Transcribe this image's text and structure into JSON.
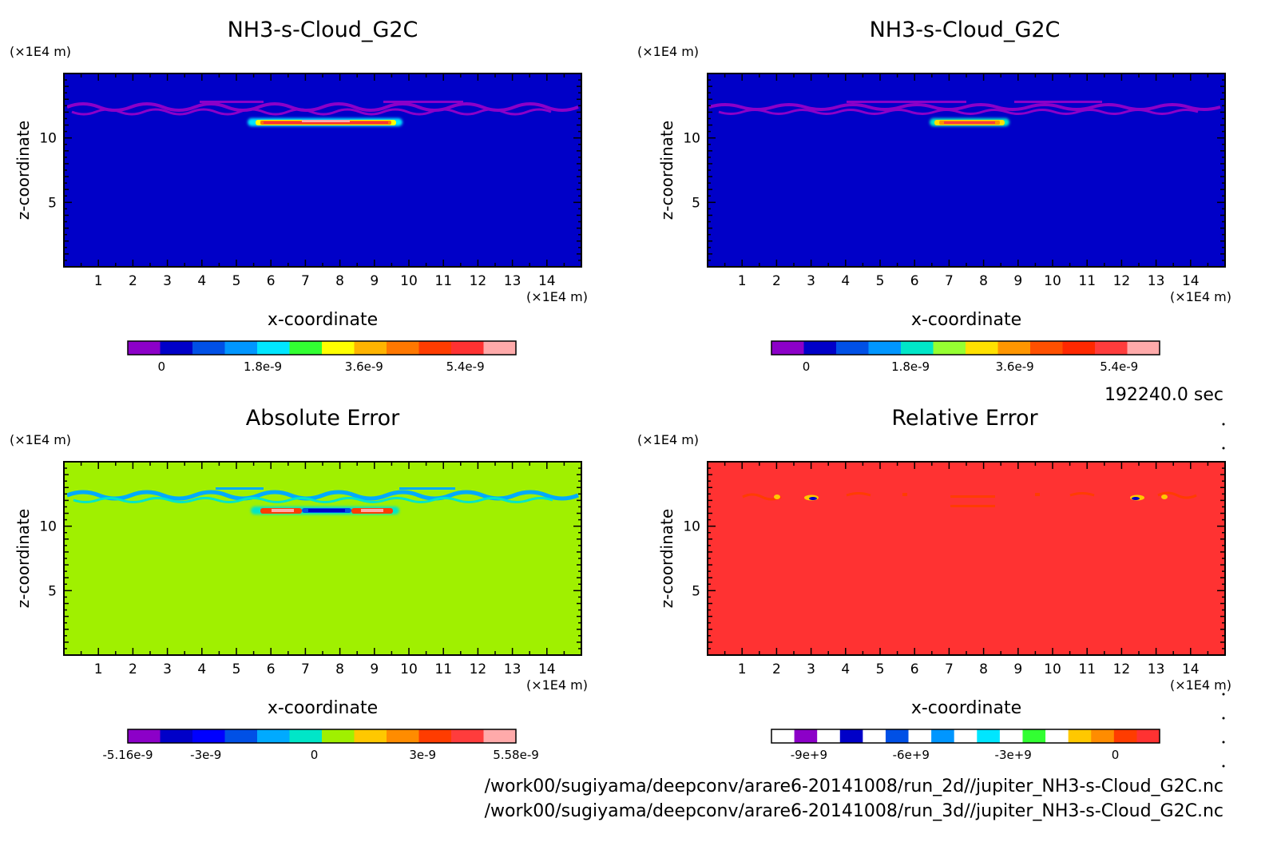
{
  "time_label": "192240.0 sec",
  "file_paths": [
    "/work00/sugiyama/deepconv/arare6-20141008/run_2d//jupiter_NH3-s-Cloud_G2C.nc",
    "/work00/sugiyama/deepconv/arare6-20141008/run_3d//jupiter_NH3-s-Cloud_G2C.nc"
  ],
  "chart_data": [
    {
      "type": "heatmap",
      "title": "NH3-s-Cloud_G2C",
      "xlabel": "x-coordinate",
      "ylabel": "z-coordinate",
      "x_unit": "(×1E4 m)",
      "y_unit": "(×1E4 m)",
      "xlim": [
        0,
        15
      ],
      "ylim": [
        0,
        15
      ],
      "xticks": [
        1,
        2,
        3,
        4,
        5,
        6,
        7,
        8,
        9,
        10,
        11,
        12,
        13,
        14
      ],
      "yticks": [
        5,
        10
      ],
      "background_color": "#0000c8",
      "colorbar": {
        "colors": [
          "#8c00c8",
          "#0000c8",
          "#0050e6",
          "#0096ff",
          "#00e6ff",
          "#32ff32",
          "#ffff00",
          "#ffb400",
          "#ff7800",
          "#ff3c00",
          "#ff3232",
          "#ffaaaa"
        ],
        "tick_labels": [
          "0",
          "1.8e-9",
          "3.6e-9",
          "5.4e-9"
        ],
        "tick_values": [
          0,
          1.8e-09,
          3.6e-09,
          5.4e-09
        ],
        "vmin": -6e-10,
        "vmax": 6.3e-09
      }
    },
    {
      "type": "heatmap",
      "title": "NH3-s-Cloud_G2C",
      "xlabel": "x-coordinate",
      "ylabel": "z-coordinate",
      "x_unit": "(×1E4 m)",
      "y_unit": "(×1E4 m)",
      "xlim": [
        0,
        15
      ],
      "ylim": [
        0,
        15
      ],
      "xticks": [
        1,
        2,
        3,
        4,
        5,
        6,
        7,
        8,
        9,
        10,
        11,
        12,
        13,
        14
      ],
      "yticks": [
        5,
        10
      ],
      "background_color": "#0000c8",
      "colorbar": {
        "colors": [
          "#8c00c8",
          "#0000c8",
          "#0050e6",
          "#0096ff",
          "#00e6c8",
          "#96ff32",
          "#ffe100",
          "#ff9600",
          "#ff5000",
          "#ff2800",
          "#ff3c3c",
          "#ffaaaa"
        ],
        "tick_labels": [
          "0",
          "1.8e-9",
          "3.6e-9",
          "5.4e-9"
        ],
        "tick_values": [
          0,
          1.8e-09,
          3.6e-09,
          5.4e-09
        ],
        "vmin": -6e-10,
        "vmax": 6.1e-09
      }
    },
    {
      "type": "heatmap",
      "title": "Absolute Error",
      "xlabel": "x-coordinate",
      "ylabel": "z-coordinate",
      "x_unit": "(×1E4 m)",
      "y_unit": "(×1E4 m)",
      "xlim": [
        0,
        15
      ],
      "ylim": [
        0,
        15
      ],
      "xticks": [
        1,
        2,
        3,
        4,
        5,
        6,
        7,
        8,
        9,
        10,
        11,
        12,
        13,
        14
      ],
      "yticks": [
        5,
        10
      ],
      "background_color": "#a0f000",
      "colorbar": {
        "colors": [
          "#8c00c8",
          "#0000c8",
          "#0000ff",
          "#0050e6",
          "#00aaff",
          "#00e6c8",
          "#a0f000",
          "#ffc800",
          "#ff8c00",
          "#ff3c00",
          "#ff3c3c",
          "#ffaaaa"
        ],
        "tick_labels": [
          "-5.16e-9",
          "-3e-9",
          "0",
          "3e-9",
          "5.58e-9"
        ],
        "tick_values": [
          -5.16e-09,
          -3e-09,
          0,
          3e-09,
          5.58e-09
        ],
        "vmin": -5.16e-09,
        "vmax": 5.58e-09
      }
    },
    {
      "type": "heatmap",
      "title": "Relative Error",
      "xlabel": "x-coordinate",
      "ylabel": "z-coordinate",
      "x_unit": "(×1E4 m)",
      "y_unit": "(×1E4 m)",
      "xlim": [
        0,
        15
      ],
      "ylim": [
        0,
        15
      ],
      "xticks": [
        1,
        2,
        3,
        4,
        5,
        6,
        7,
        8,
        9,
        10,
        11,
        12,
        13,
        14
      ],
      "yticks": [
        5,
        10
      ],
      "background_color": "#ff3232",
      "colorbar": {
        "colors": [
          "#ffffff",
          "#8c00c8",
          "#ffffff",
          "#0000c8",
          "#ffffff",
          "#0050e6",
          "#ffffff",
          "#0096ff",
          "#ffffff",
          "#00e6ff",
          "#ffffff",
          "#32ff32",
          "#ffffff",
          "#ffc800",
          "#ff8c00",
          "#ff3c00",
          "#ff3232"
        ],
        "tick_labels": [
          "-9e+9",
          "-6e+9",
          "-3e+9",
          "0"
        ],
        "tick_values": [
          -9000000000.0,
          -6000000000.0,
          -3000000000.0,
          0
        ],
        "vmin": -10100000000.0,
        "vmax": 1300000000.0
      }
    }
  ]
}
